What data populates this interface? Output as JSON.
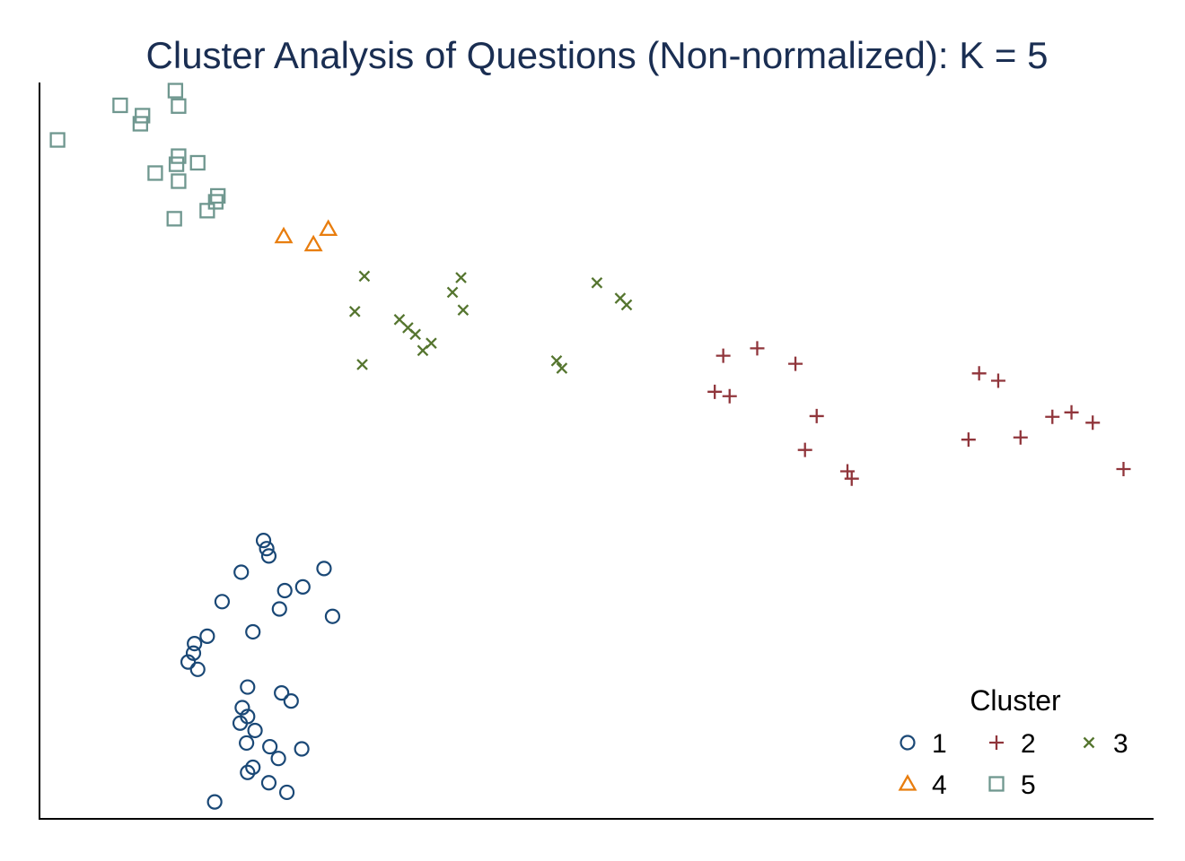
{
  "chart_data": {
    "type": "scatter",
    "title": "Cluster Analysis of Questions (Non-normalized): K = 5",
    "xlabel": "",
    "ylabel": "",
    "xlim": [
      0,
      100
    ],
    "ylim": [
      0,
      100
    ],
    "grid": false,
    "axis_ticks_shown": false,
    "legend": {
      "title": "Cluster",
      "placement": "bottom-right"
    },
    "series": [
      {
        "name": "1",
        "marker": "circle",
        "color": "#1a4876",
        "points": [
          [
            21.1,
            37.8
          ],
          [
            21.4,
            36.7
          ],
          [
            21.6,
            35.7
          ],
          [
            19.0,
            33.5
          ],
          [
            26.8,
            34.0
          ],
          [
            24.8,
            31.5
          ],
          [
            23.1,
            31.0
          ],
          [
            17.2,
            29.5
          ],
          [
            22.6,
            28.5
          ],
          [
            27.6,
            27.5
          ],
          [
            20.1,
            25.4
          ],
          [
            15.8,
            24.8
          ],
          [
            14.6,
            23.8
          ],
          [
            14.5,
            22.5
          ],
          [
            14.0,
            21.3
          ],
          [
            14.9,
            20.3
          ],
          [
            19.6,
            17.9
          ],
          [
            22.8,
            17.1
          ],
          [
            23.7,
            16.0
          ],
          [
            19.1,
            15.1
          ],
          [
            19.6,
            13.9
          ],
          [
            18.9,
            13.0
          ],
          [
            20.3,
            12.0
          ],
          [
            19.5,
            10.3
          ],
          [
            21.7,
            9.8
          ],
          [
            24.7,
            9.5
          ],
          [
            22.5,
            8.2
          ],
          [
            20.1,
            7.0
          ],
          [
            19.6,
            6.3
          ],
          [
            21.6,
            4.9
          ],
          [
            23.3,
            3.6
          ],
          [
            16.5,
            2.3
          ]
        ]
      },
      {
        "name": "2",
        "marker": "plus",
        "color": "#90353b",
        "points": [
          [
            64.4,
            62.9
          ],
          [
            67.6,
            63.9
          ],
          [
            71.2,
            61.8
          ],
          [
            63.6,
            58.0
          ],
          [
            65.0,
            57.4
          ],
          [
            72.1,
            50.1
          ],
          [
            73.2,
            54.7
          ],
          [
            76.1,
            47.2
          ],
          [
            76.5,
            46.2
          ],
          [
            87.5,
            51.5
          ],
          [
            88.5,
            60.5
          ],
          [
            90.3,
            59.5
          ],
          [
            92.4,
            51.8
          ],
          [
            95.4,
            54.6
          ],
          [
            97.2,
            55.2
          ],
          [
            99.2,
            53.8
          ],
          [
            102.1,
            47.5
          ]
        ]
      },
      {
        "name": "3",
        "marker": "x",
        "color": "#55752f",
        "points": [
          [
            30.6,
            73.7
          ],
          [
            29.7,
            68.9
          ],
          [
            30.4,
            61.7
          ],
          [
            33.9,
            67.8
          ],
          [
            34.7,
            66.7
          ],
          [
            35.4,
            65.8
          ],
          [
            36.1,
            63.6
          ],
          [
            36.9,
            64.6
          ],
          [
            38.9,
            71.5
          ],
          [
            39.7,
            73.5
          ],
          [
            39.9,
            69.1
          ],
          [
            48.7,
            62.2
          ],
          [
            49.2,
            61.2
          ],
          [
            52.5,
            72.8
          ],
          [
            54.7,
            70.7
          ],
          [
            55.3,
            69.8
          ]
        ]
      },
      {
        "name": "4",
        "marker": "triangle",
        "color": "#e87d0e",
        "points": [
          [
            23.0,
            79.1
          ],
          [
            25.8,
            78.0
          ],
          [
            27.2,
            80.1
          ]
        ]
      },
      {
        "name": "5",
        "marker": "square",
        "color": "#6f978f",
        "points": [
          [
            1.7,
            92.2
          ],
          [
            7.6,
            96.9
          ],
          [
            9.7,
            95.5
          ],
          [
            9.5,
            94.4
          ],
          [
            12.8,
            98.9
          ],
          [
            13.1,
            96.8
          ],
          [
            13.1,
            90.0
          ],
          [
            14.9,
            89.1
          ],
          [
            12.9,
            88.9
          ],
          [
            10.9,
            87.7
          ],
          [
            13.1,
            86.6
          ],
          [
            16.8,
            84.6
          ],
          [
            16.6,
            83.8
          ],
          [
            15.8,
            82.6
          ],
          [
            12.7,
            81.5
          ]
        ]
      }
    ]
  }
}
